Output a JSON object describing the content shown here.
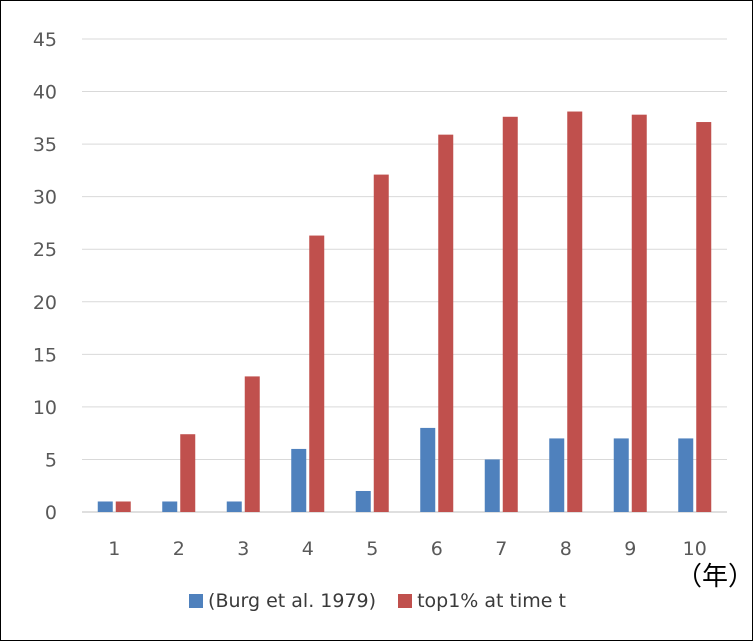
{
  "chart_data": {
    "type": "bar",
    "categories": [
      "1",
      "2",
      "3",
      "4",
      "5",
      "6",
      "7",
      "8",
      "9",
      "10"
    ],
    "series": [
      {
        "name": "(Burg et al. 1979)",
        "color": "#4f81bd",
        "values": [
          1,
          1,
          1,
          6,
          2,
          8,
          5,
          7,
          7,
          7
        ]
      },
      {
        "name": "top1% at time t",
        "color": "#c0504d",
        "values": [
          1,
          7.4,
          12.9,
          26.3,
          32.1,
          35.9,
          37.6,
          38.1,
          37.8,
          37.1
        ]
      }
    ],
    "ylim": [
      0,
      45
    ],
    "yticks": [
      0,
      5,
      10,
      15,
      20,
      25,
      30,
      35,
      40,
      45
    ],
    "x_unit": "（年）",
    "grid": true,
    "legend_position": "bottom"
  }
}
